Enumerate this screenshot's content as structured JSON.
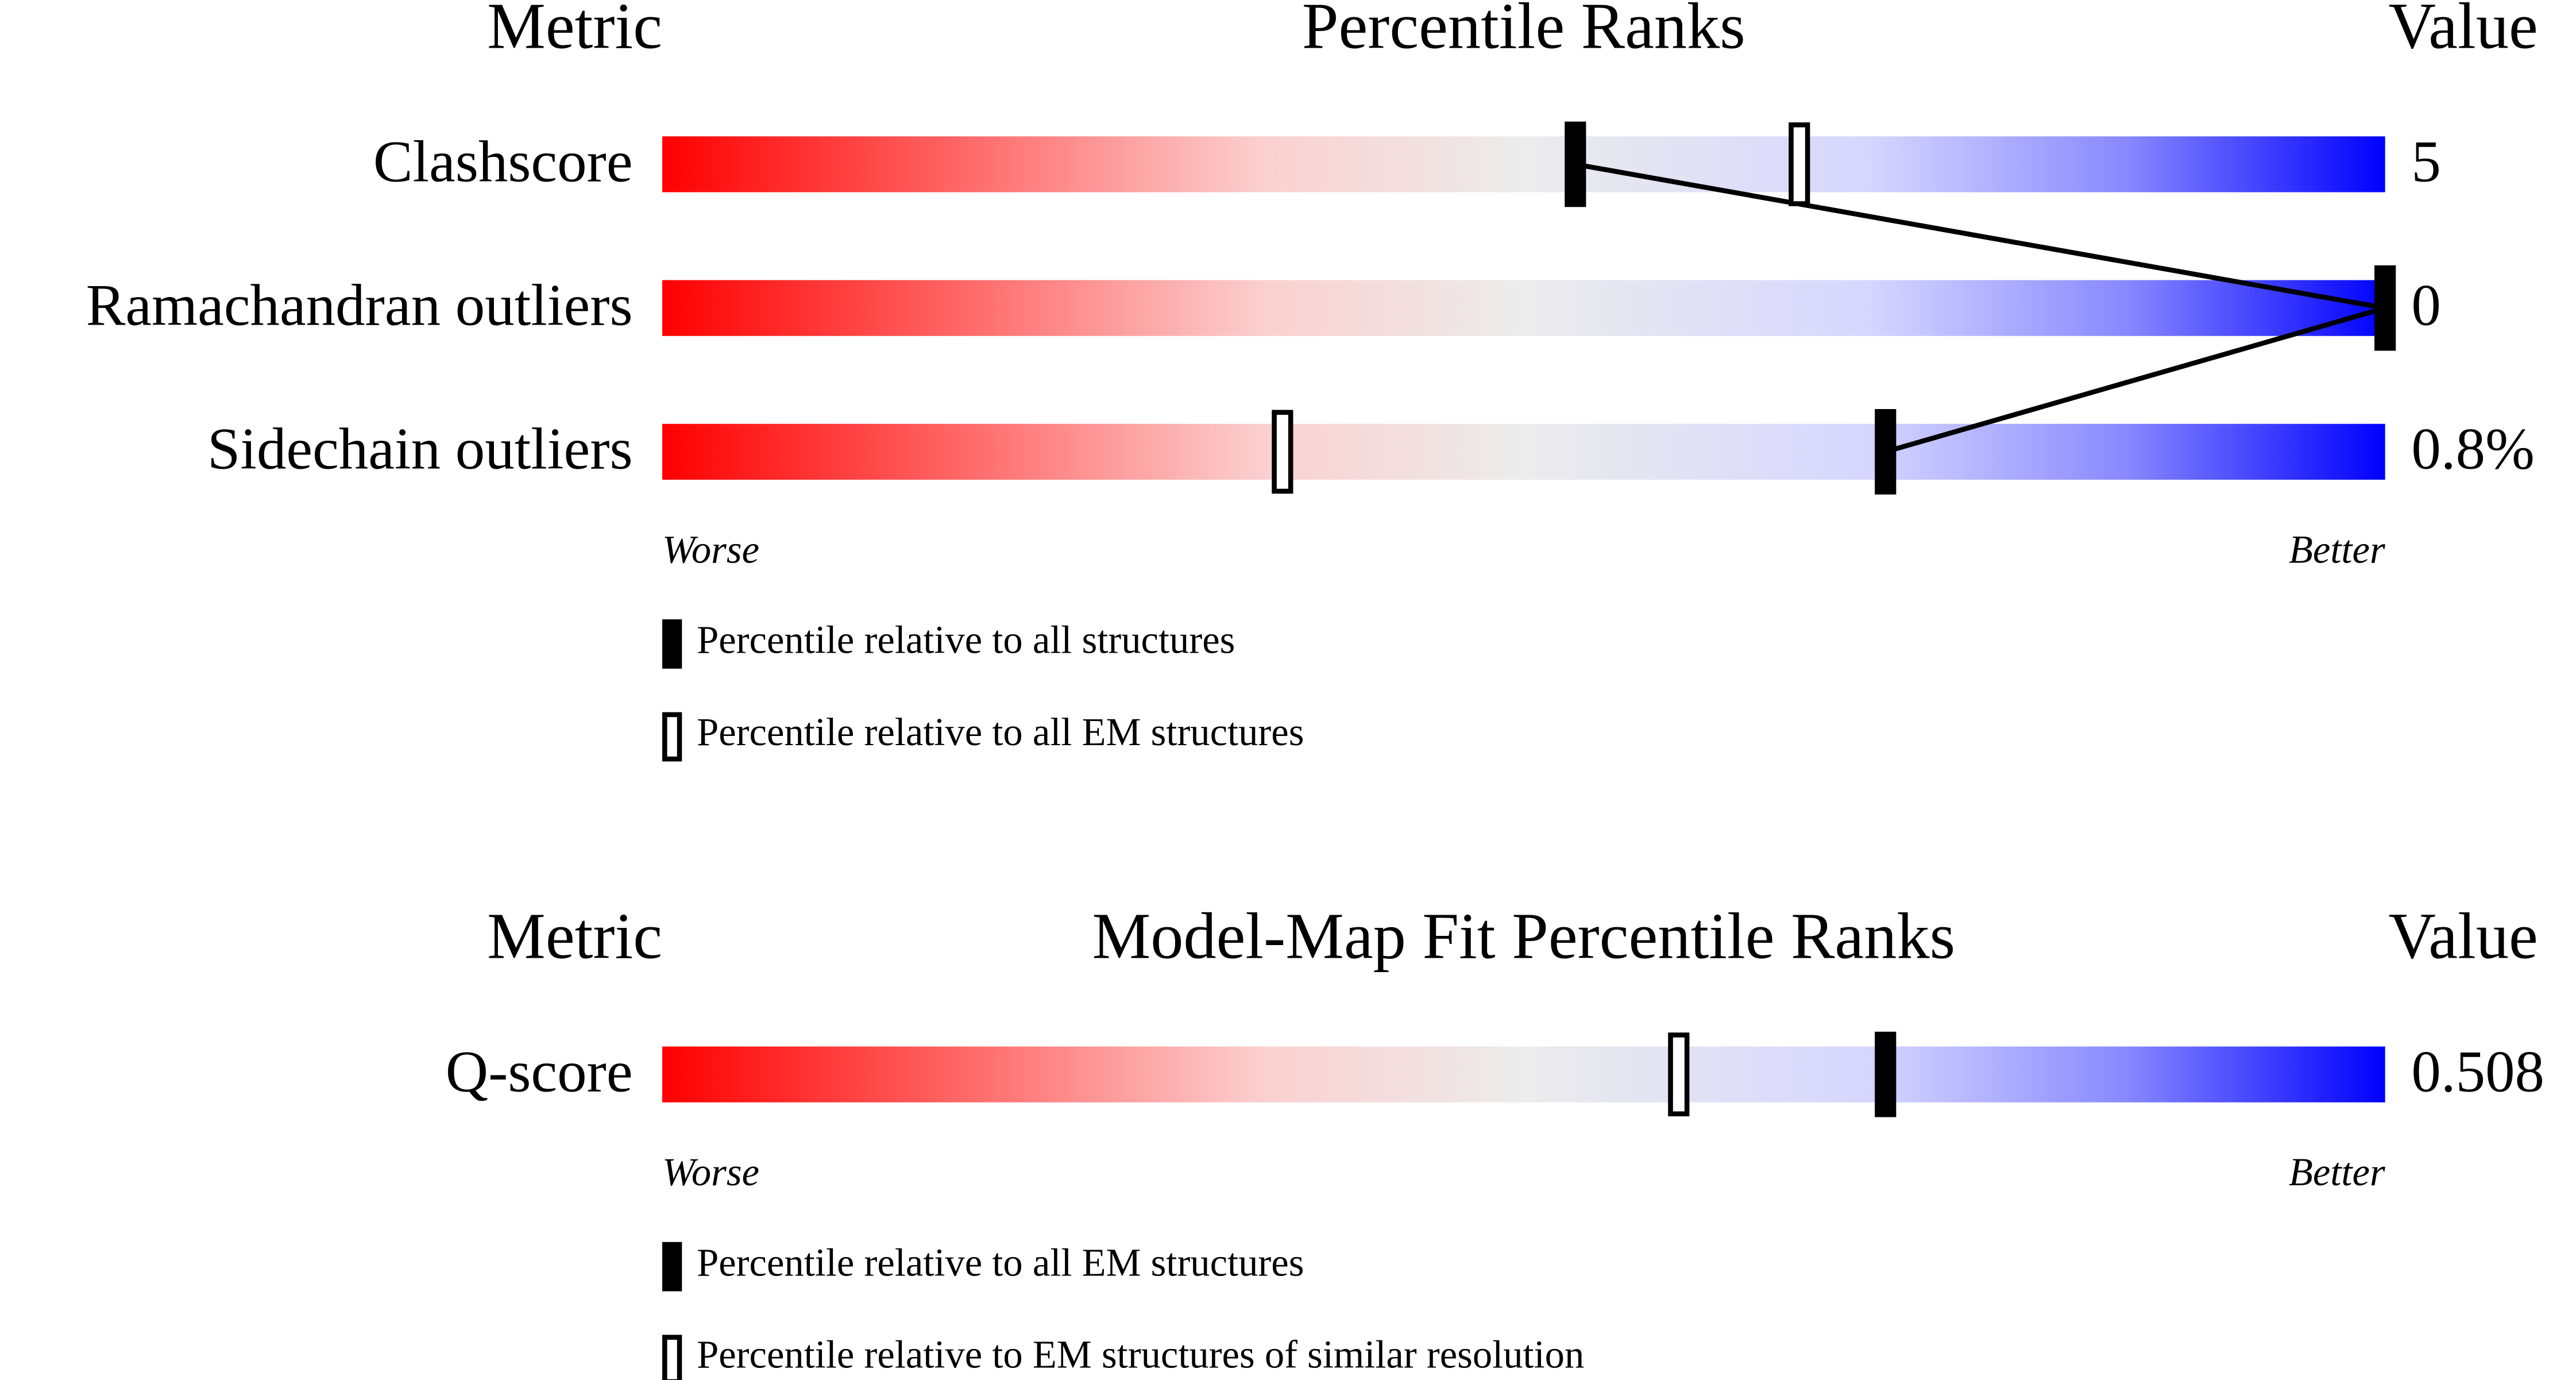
{
  "chart_data": [
    {
      "type": "percentile-slider",
      "y_label": "Metric",
      "title": "Percentile Ranks",
      "value_header": "Value",
      "categories": [
        "Clashscore",
        "Ramachandran outliers",
        "Sidechain outliers"
      ],
      "values": [
        5,
        0,
        0.8
      ],
      "value_labels": [
        "5",
        "0",
        "0.8%"
      ],
      "xlim": [
        0,
        100
      ],
      "x_start_label": "Worse",
      "x_end_label": "Better",
      "connector": true,
      "series": [
        {
          "name": "Percentile relative to all structures",
          "color": "#000000",
          "style": "filled",
          "values": [
            53,
            100,
            71
          ]
        },
        {
          "name": "Percentile relative to all EM structures",
          "color": "#000000",
          "style": "open",
          "values": [
            66,
            null,
            36
          ]
        }
      ]
    },
    {
      "type": "percentile-slider",
      "y_label": "Metric",
      "title": "Model-Map Fit Percentile Ranks",
      "value_header": "Value",
      "categories": [
        "Q-score"
      ],
      "values": [
        0.508
      ],
      "value_labels": [
        "0.508"
      ],
      "xlim": [
        0,
        100
      ],
      "x_start_label": "Worse",
      "x_end_label": "Better",
      "connector": true,
      "series": [
        {
          "name": "Percentile relative to all EM structures",
          "color": "#000000",
          "style": "filled",
          "values": [
            71
          ]
        },
        {
          "name": "Percentile relative to EM structures of similar resolution",
          "color": "#000000",
          "style": "open",
          "values": [
            59
          ]
        }
      ]
    }
  ]
}
